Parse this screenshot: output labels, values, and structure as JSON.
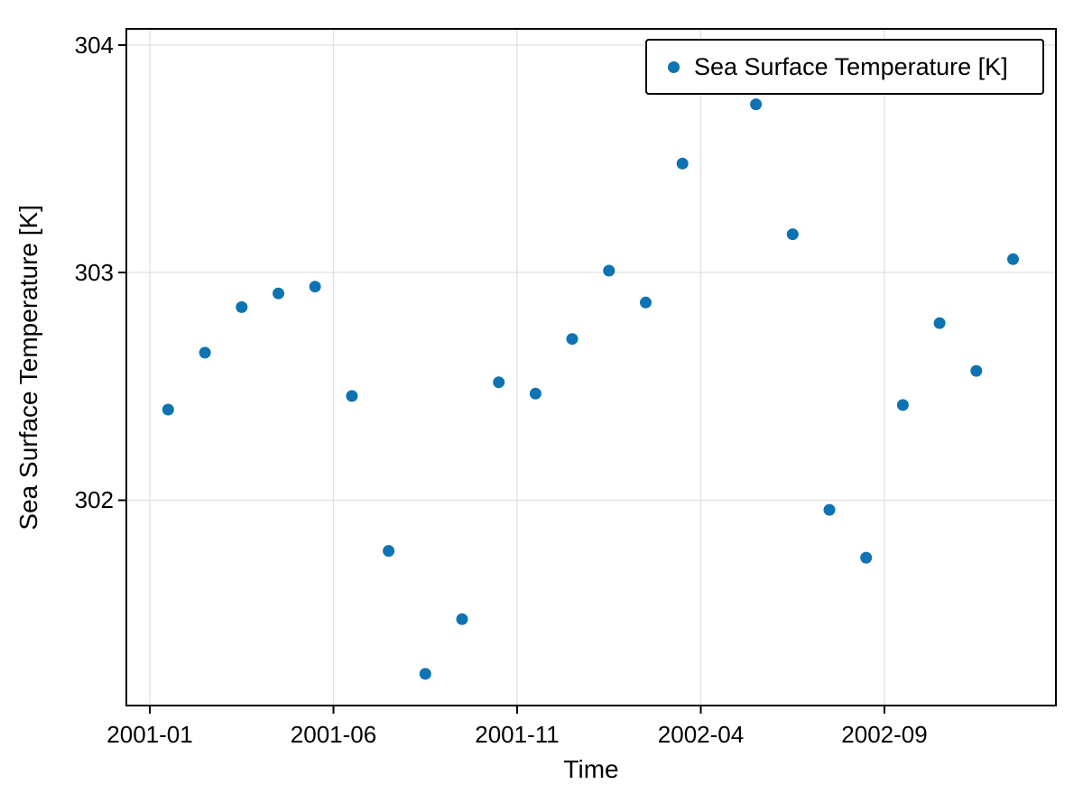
{
  "chart_data": {
    "type": "scatter",
    "title": "",
    "xlabel": "Time",
    "ylabel": "Sea Surface Temperature [K]",
    "legend": {
      "label": "Sea Surface Temperature [K]",
      "position": "upper-right"
    },
    "x_tick_labels": [
      "2001-01",
      "2001-06",
      "2001-11",
      "2002-04",
      "2002-09"
    ],
    "y_tick_labels": [
      "302",
      "303",
      "304"
    ],
    "xlim": [
      "2000-12",
      "2003-01"
    ],
    "ylim": [
      301.1,
      304.07
    ],
    "grid": true,
    "colors": {
      "marker": "#0d73b2",
      "grid": "#e0e0e0",
      "axis": "#000000",
      "background": "#ffffff"
    },
    "series": [
      {
        "name": "Sea Surface Temperature [K]",
        "points": [
          {
            "t": "2001-01",
            "v": 302.4
          },
          {
            "t": "2001-02",
            "v": 302.65
          },
          {
            "t": "2001-03",
            "v": 302.85
          },
          {
            "t": "2001-04",
            "v": 302.91
          },
          {
            "t": "2001-05",
            "v": 302.94
          },
          {
            "t": "2001-06",
            "v": 302.46
          },
          {
            "t": "2001-07",
            "v": 301.78
          },
          {
            "t": "2001-08",
            "v": 301.24
          },
          {
            "t": "2001-09",
            "v": 301.48
          },
          {
            "t": "2001-10",
            "v": 302.52
          },
          {
            "t": "2001-11",
            "v": 302.47
          },
          {
            "t": "2001-12",
            "v": 302.71
          },
          {
            "t": "2002-01",
            "v": 303.01
          },
          {
            "t": "2002-02",
            "v": 302.87
          },
          {
            "t": "2002-03",
            "v": 303.48
          },
          {
            "t": "2002-05",
            "v": 303.74
          },
          {
            "t": "2002-06",
            "v": 303.17
          },
          {
            "t": "2002-07",
            "v": 301.96
          },
          {
            "t": "2002-08",
            "v": 301.75
          },
          {
            "t": "2002-09",
            "v": 302.42
          },
          {
            "t": "2002-10",
            "v": 302.78
          },
          {
            "t": "2002-11",
            "v": 302.57
          },
          {
            "t": "2002-12",
            "v": 303.06
          }
        ]
      }
    ]
  }
}
